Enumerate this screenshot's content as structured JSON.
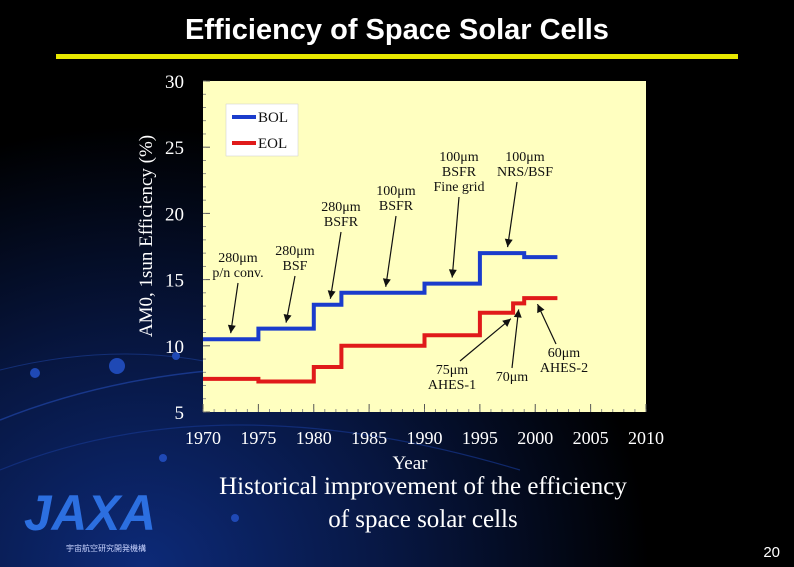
{
  "slide": {
    "title": "Efficiency of Space Solar Cells",
    "caption_line1": "Historical improvement  of the efficiency",
    "caption_line2": "of space solar cells",
    "page_number": "20",
    "logo_text": "JAXA",
    "logo_subtext": "宇宙航空研究開発機構"
  },
  "chart_data": {
    "type": "line",
    "xlabel": "Year",
    "ylabel": "AM0, 1sun Efficiency  (%)",
    "xlim": [
      1970,
      2010
    ],
    "ylim": [
      5,
      30
    ],
    "xticks": [
      "1970",
      "1975",
      "1980",
      "1985",
      "1990",
      "1995",
      "2000",
      "2005",
      "2010"
    ],
    "yticks": [
      "5",
      "10",
      "15",
      "20",
      "25",
      "30"
    ],
    "legend_position": "top-left",
    "series": [
      {
        "name": "BOL",
        "color": "#1a3ccc",
        "points": [
          [
            1970,
            10.5
          ],
          [
            1975,
            10.5
          ],
          [
            1975,
            11.3
          ],
          [
            1980,
            11.3
          ],
          [
            1980,
            13.1
          ],
          [
            1982.5,
            13.1
          ],
          [
            1982.5,
            14.0
          ],
          [
            1990,
            14.0
          ],
          [
            1990,
            14.7
          ],
          [
            1995,
            14.7
          ],
          [
            1995,
            17.0
          ],
          [
            1999,
            17.0
          ],
          [
            1999,
            16.7
          ],
          [
            2002,
            16.7
          ]
        ]
      },
      {
        "name": "EOL",
        "color": "#e01a1a",
        "points": [
          [
            1970,
            7.5
          ],
          [
            1975,
            7.5
          ],
          [
            1975,
            7.3
          ],
          [
            1980,
            7.3
          ],
          [
            1980,
            8.4
          ],
          [
            1982.5,
            8.4
          ],
          [
            1982.5,
            10.0
          ],
          [
            1990,
            10.0
          ],
          [
            1990,
            10.8
          ],
          [
            1995,
            10.8
          ],
          [
            1995,
            12.5
          ],
          [
            1998,
            12.5
          ],
          [
            1998,
            13.2
          ],
          [
            1999,
            13.2
          ],
          [
            1999,
            13.6
          ],
          [
            2002,
            13.6
          ]
        ]
      }
    ],
    "annotations": [
      {
        "lines": [
          "280μm",
          "p/n conv."
        ],
        "target": [
          1972.5,
          10.5
        ]
      },
      {
        "lines": [
          "280μm",
          "BSF"
        ],
        "target": [
          1977.5,
          11.3
        ]
      },
      {
        "lines": [
          "280μm",
          "BSFR"
        ],
        "target": [
          1981.5,
          13.1
        ]
      },
      {
        "lines": [
          "100μm",
          "BSFR"
        ],
        "target": [
          1986.5,
          14.0
        ]
      },
      {
        "lines": [
          "100μm",
          "BSFR",
          "Fine grid"
        ],
        "target": [
          1992.5,
          14.7
        ]
      },
      {
        "lines": [
          "100μm",
          "NRS/BSF"
        ],
        "target": [
          1997.5,
          17.0
        ]
      },
      {
        "lines": [
          "75μm",
          "AHES-1"
        ],
        "target": [
          1997.8,
          12.5
        ]
      },
      {
        "lines": [
          "70μm"
        ],
        "target": [
          1998.5,
          13.2
        ]
      },
      {
        "lines": [
          "60μm",
          "AHES-2"
        ],
        "target": [
          2000.2,
          13.6
        ]
      }
    ]
  }
}
